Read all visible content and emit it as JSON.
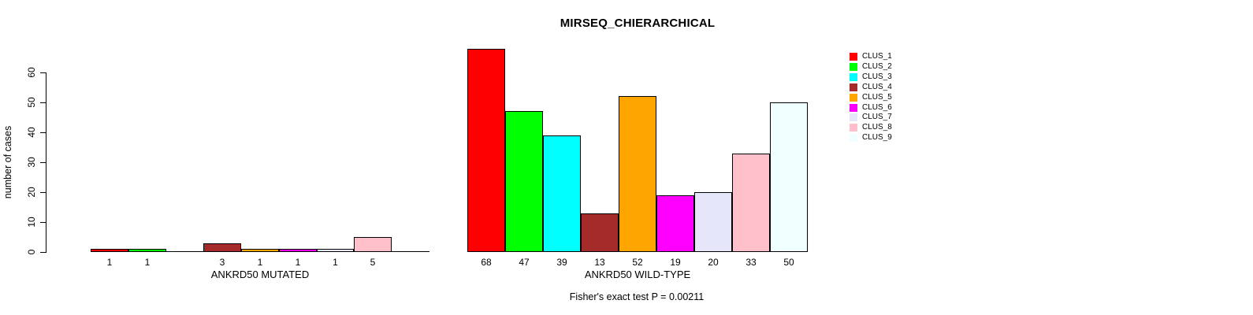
{
  "chart_data": {
    "type": "bar",
    "title": "MIRSEQ_CHIERARCHICAL",
    "ylabel": "number of cases",
    "footnote": "Fisher's exact test P = 0.00211",
    "grid": false,
    "y_axis": {
      "ticks": [
        0,
        10,
        20,
        30,
        40,
        50,
        60
      ],
      "range": [
        0,
        68
      ]
    },
    "legend": {
      "position": "top-right"
    },
    "clusters": [
      {
        "label": "CLUS_1",
        "color": "#FF0000"
      },
      {
        "label": "CLUS_2",
        "color": "#00FF00"
      },
      {
        "label": "CLUS_3",
        "color": "#00FFFF"
      },
      {
        "label": "CLUS_4",
        "color": "#A52A2A"
      },
      {
        "label": "CLUS_5",
        "color": "#FFA500"
      },
      {
        "label": "CLUS_6",
        "color": "#FF00FF"
      },
      {
        "label": "CLUS_7",
        "color": "#E6E6FA"
      },
      {
        "label": "CLUS_8",
        "color": "#FFC0CB"
      },
      {
        "label": "CLUS_9",
        "color": "#F0FFFF"
      }
    ],
    "panels": [
      {
        "xlabel": "ANKRD50 MUTATED",
        "values": [
          1,
          1,
          0,
          3,
          1,
          1,
          1,
          5,
          0
        ]
      },
      {
        "xlabel": "ANKRD50 WILD-TYPE",
        "values": [
          68,
          47,
          39,
          13,
          52,
          19,
          20,
          33,
          50
        ]
      }
    ]
  }
}
